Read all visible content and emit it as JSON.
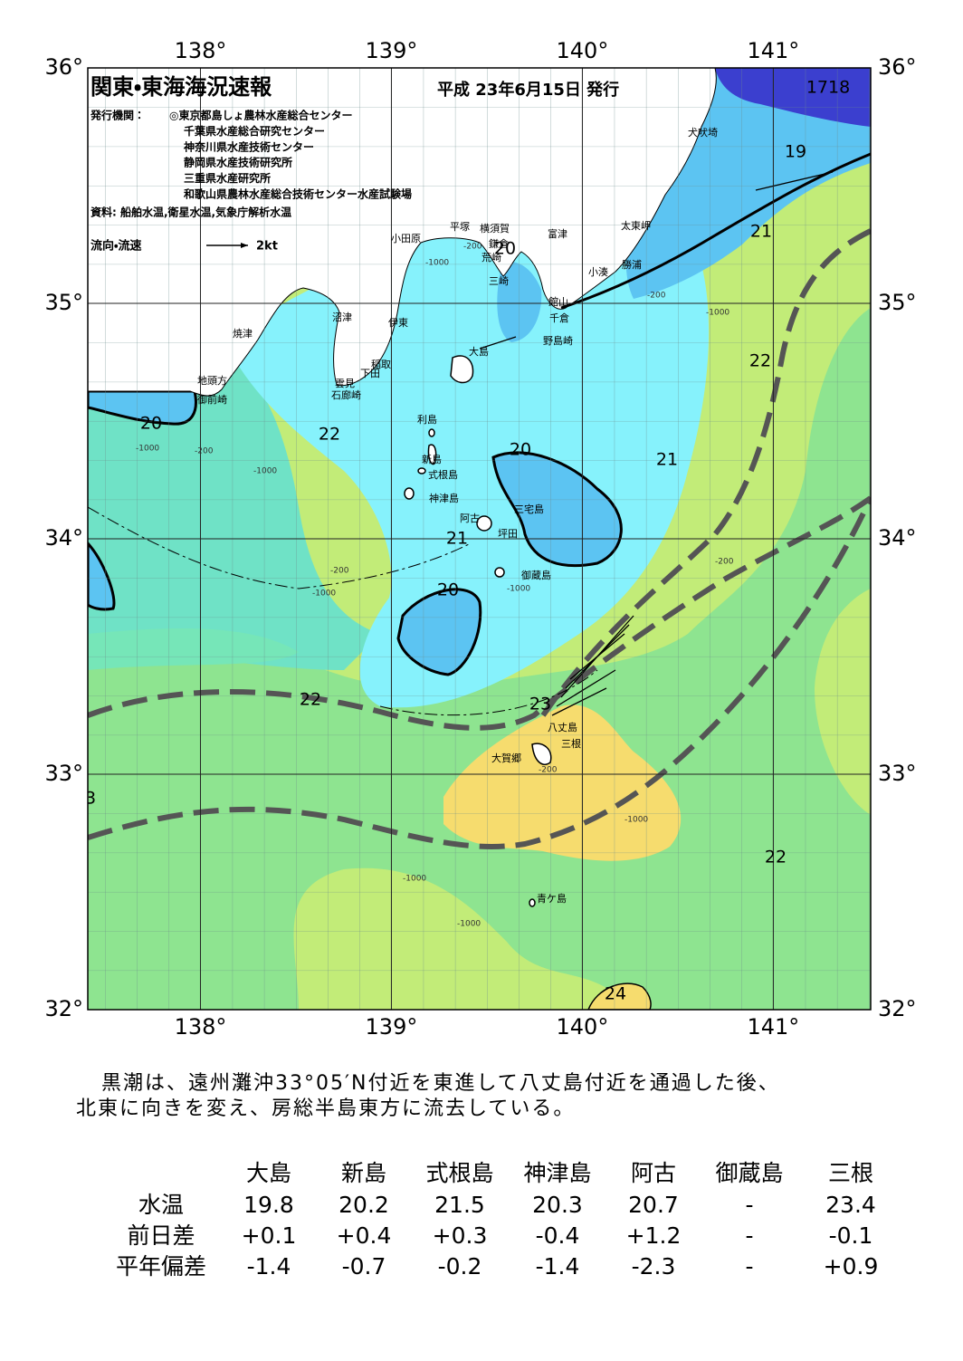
{
  "header": {
    "title": "関東・東海海況速報",
    "date": "平成 23年6月15日 発行",
    "issuer_label": "発行機関：",
    "issuers": [
      "◎東京都島しょ農林水産総合センター",
      "千葉県水産総合研究センター",
      "神奈川県水産技術センター",
      "静岡県水産技術研究所",
      "三重県水産研究所",
      "和歌山県農林水産総合技術センター水産試験場"
    ],
    "source": "資料: 船舶水温,衛星水温,気象庁解析水温",
    "legend": {
      "label": "流向・流速",
      "scale": "2kt"
    }
  },
  "map": {
    "xlim": [
      137.41,
      141.51
    ],
    "ylim": [
      32,
      36
    ],
    "lon_ticks": [
      {
        "value": 138,
        "label": "138°"
      },
      {
        "value": 139,
        "label": "139°"
      },
      {
        "value": 140,
        "label": "140°"
      },
      {
        "value": 141,
        "label": "141°"
      }
    ],
    "lat_ticks": [
      {
        "value": 32,
        "label": "32°"
      },
      {
        "value": 33,
        "label": "33°"
      },
      {
        "value": 34,
        "label": "34°"
      },
      {
        "value": 35,
        "label": "35°"
      },
      {
        "value": 36,
        "label": "36°"
      }
    ],
    "places": [
      "小田原",
      "平塚",
      "横須賀",
      "鎌倉",
      "荒崎",
      "三崎",
      "富津",
      "太東岬",
      "小湊",
      "勝浦",
      "館山",
      "千倉",
      "野島崎",
      "犬吠埼",
      "沼津",
      "伊東",
      "焼津",
      "稲取",
      "下田",
      "雲見",
      "石廊崎",
      "地頭方",
      "御前崎",
      "大島",
      "利島",
      "新島",
      "式根島",
      "神津島",
      "三宅島",
      "阿古",
      "坪田",
      "御蔵島",
      "八丈島",
      "三根",
      "大賀郷",
      "青ケ島"
    ],
    "contour_labels": [
      "1718",
      "19",
      "21",
      "22",
      "21",
      "20",
      "22",
      "20",
      "21",
      "20",
      "22",
      "23",
      "22",
      "24",
      "3",
      "20"
    ],
    "depth_labels": [
      "-1000",
      "-200",
      "-1000",
      "-200",
      "-1000",
      "-200",
      "-1000",
      "-200",
      "-1000",
      "-1000",
      "-1000",
      "-200",
      "-1000",
      "-1000",
      "-200"
    ]
  },
  "summary": [
    "黒潮は、遠州灘沖33°05′N付近を東進して八丈島付近を通過した後、",
    "北東に向きを変え、房総半島東方に流去している。"
  ],
  "table": {
    "columns": [
      "大島",
      "新島",
      "式根島",
      "神津島",
      "阿古",
      "御蔵島",
      "三根"
    ],
    "rows": [
      {
        "label": "水温",
        "cells": [
          "19.8",
          "20.2",
          "21.5",
          "20.3",
          "20.7",
          "-",
          "23.4"
        ]
      },
      {
        "label": "前日差",
        "cells": [
          "+0.1",
          "+0.4",
          "+0.3",
          "-0.4",
          "+1.2",
          "-",
          "-0.1"
        ]
      },
      {
        "label": "平年偏差",
        "cells": [
          "-1.4",
          "-0.7",
          "-0.2",
          "-1.4",
          "-2.3",
          "-",
          "+0.9"
        ]
      }
    ]
  }
}
